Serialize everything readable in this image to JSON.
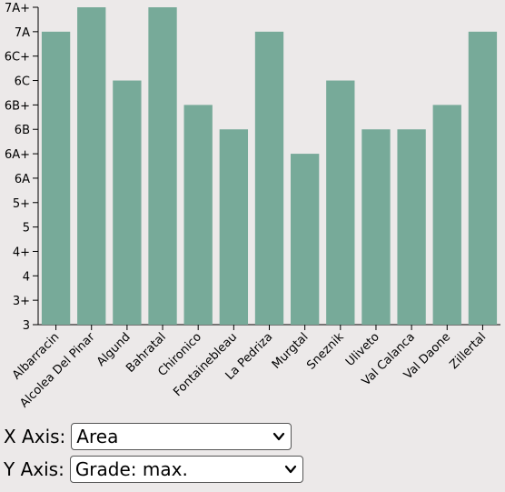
{
  "chart_data": {
    "type": "bar",
    "categories": [
      "Albarracin",
      "Alcolea Del Pinar",
      "Algund",
      "Bahratal",
      "Chironico",
      "Fontainebleau",
      "La Pedriza",
      "Murgtal",
      "Sneznik",
      "Uliveto",
      "Val Calanca",
      "Val Daone",
      "Zillertal"
    ],
    "values": [
      "7A",
      "7A+",
      "6C",
      "7A+",
      "6B+",
      "6B",
      "7A",
      "6A+",
      "6C",
      "6B",
      "6B",
      "6B+",
      "7A"
    ],
    "y_scale": [
      "3",
      "3+",
      "4",
      "4+",
      "5",
      "5+",
      "6A",
      "6A+",
      "6B",
      "6B+",
      "6C",
      "6C+",
      "7A",
      "7A+"
    ],
    "title": "",
    "xlabel": "",
    "ylabel": "",
    "bar_color": "#77aa99",
    "grid": false
  },
  "controls": {
    "x_axis": {
      "label": "X Axis:",
      "selected": "Area"
    },
    "y_axis": {
      "label": "Y Axis:",
      "selected": "Grade: max."
    }
  }
}
